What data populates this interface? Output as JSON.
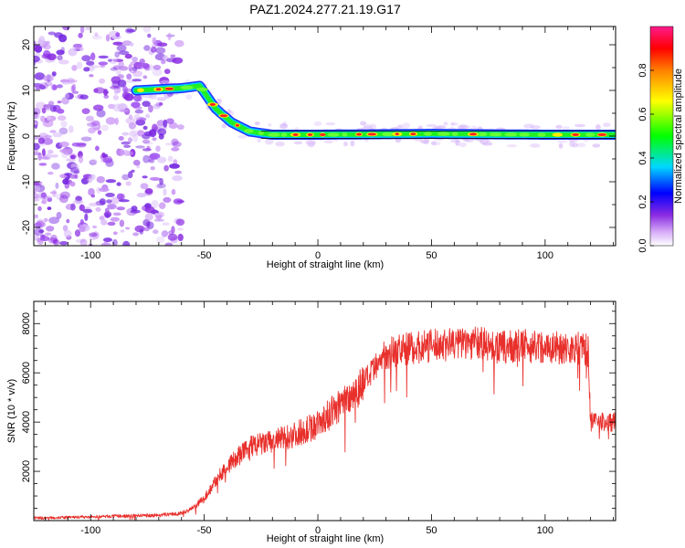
{
  "figure": {
    "title": "PAZ1.2024.277.21.19.G17"
  },
  "chart_data": [
    {
      "type": "heatmap",
      "xlabel": "Height of straight line (km)",
      "ylabel": "Frequency (Hz)",
      "xlim": [
        -125,
        131
      ],
      "ylim": [
        -24,
        24
      ],
      "xticks": [
        -100,
        -50,
        0,
        50,
        100
      ],
      "yticks": [
        -20,
        -10,
        0,
        10,
        20
      ],
      "ridge": {
        "x": [
          -80,
          -60,
          -52,
          -45,
          -38,
          -30,
          -20,
          0,
          50,
          100,
          131
        ],
        "y": [
          10,
          10.5,
          11,
          6,
          3,
          1,
          0.3,
          0.3,
          0.5,
          0.3,
          0.3
        ]
      },
      "colorbar": {
        "label": "Normalized spectral amplitude",
        "range": [
          0,
          1
        ],
        "ticks": [
          0,
          0.2,
          0.4,
          0.6,
          0.8
        ]
      },
      "grid": false
    },
    {
      "type": "line",
      "xlabel": "Height of straight line (km)",
      "ylabel": "SNR (10 * v/v)",
      "xlim": [
        -125,
        131
      ],
      "ylim": [
        0,
        8900
      ],
      "xticks": [
        -100,
        -50,
        0,
        50,
        100
      ],
      "yticks": [
        2000,
        4000,
        6000,
        8000
      ],
      "series_color": "#e8302c",
      "series": [
        {
          "x": [
            -125,
            -100,
            -80,
            -70,
            -60,
            -55,
            -50,
            -45,
            -40,
            -35,
            -30,
            -20,
            -10,
            0,
            10,
            20,
            25,
            30,
            40,
            50,
            60,
            70,
            80,
            90,
            100,
            110,
            115,
            119,
            120,
            125,
            131
          ],
          "values": [
            100,
            150,
            200,
            220,
            300,
            500,
            900,
            1600,
            2200,
            2600,
            3000,
            3200,
            3500,
            3900,
            4700,
            5600,
            6100,
            6800,
            7000,
            7100,
            7200,
            7250,
            7000,
            7100,
            7050,
            7000,
            7000,
            6900,
            4000,
            4000,
            4000
          ]
        }
      ],
      "grid": false
    }
  ]
}
